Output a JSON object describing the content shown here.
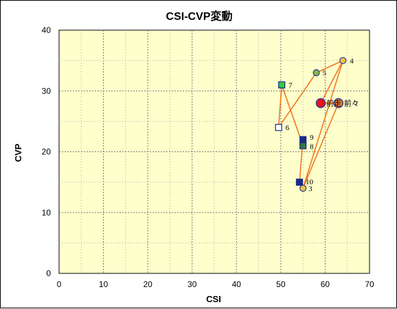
{
  "chart_data": {
    "type": "scatter",
    "title": "CSI-CVP変動",
    "xlabel": "CSI",
    "ylabel": "CVP",
    "xlim": [
      0,
      70
    ],
    "ylim": [
      0,
      40
    ],
    "xticks": [
      "0",
      "10",
      "20",
      "30",
      "40",
      "50",
      "60",
      "70"
    ],
    "yticks": [
      "0",
      "10",
      "20",
      "30",
      "40"
    ],
    "grid": true,
    "background_color": "#ffffcc",
    "line_color": "#f07820",
    "points": [
      {
        "label": "3",
        "x": 55,
        "y": 14,
        "marker": "circle",
        "fill": "#f5c242",
        "stroke": "#2a3a9a"
      },
      {
        "label": "4",
        "x": 64,
        "y": 35,
        "marker": "circle",
        "fill": "#f5c242",
        "stroke": "#2a3a9a"
      },
      {
        "label": "5",
        "x": 58,
        "y": 33,
        "marker": "circle",
        "fill": "#8cb43c",
        "stroke": "#2a3a9a"
      },
      {
        "label": "6",
        "x": 49.5,
        "y": 24,
        "marker": "square",
        "fill": "#ffffff",
        "stroke": "#1a2a8a"
      },
      {
        "label": "7",
        "x": 50.2,
        "y": 31,
        "marker": "square",
        "fill": "#33cc33",
        "stroke": "#1a2a8a"
      },
      {
        "label": "8",
        "x": 55,
        "y": 21,
        "marker": "square",
        "fill": "#2a7a3a",
        "stroke": "#1a2a8a"
      },
      {
        "label": "9",
        "x": 55,
        "y": 22,
        "marker": "square",
        "fill": "#1a2a8a",
        "stroke": "#1a2a8a"
      },
      {
        "label": "10",
        "x": 54.2,
        "y": 15,
        "marker": "square",
        "fill": "#1a2a8a",
        "stroke": "#1a2a8a"
      }
    ],
    "path_order": [
      "3",
      "4",
      "5",
      "6",
      "7",
      "8",
      "9",
      "10"
    ],
    "highlights": [
      {
        "label": "前走",
        "x": 59,
        "y": 28,
        "fill": "#ee1111",
        "stroke": "#2a3a9a"
      },
      {
        "label": "前々",
        "x": 63,
        "y": 28,
        "fill": "#f07820",
        "stroke": "#2a3a9a"
      }
    ],
    "highlight_connections": [
      {
        "from": "前走",
        "to_point": "4"
      },
      {
        "from": "前々",
        "to_point": "3"
      },
      {
        "from": "前走",
        "to": "前々"
      }
    ]
  }
}
